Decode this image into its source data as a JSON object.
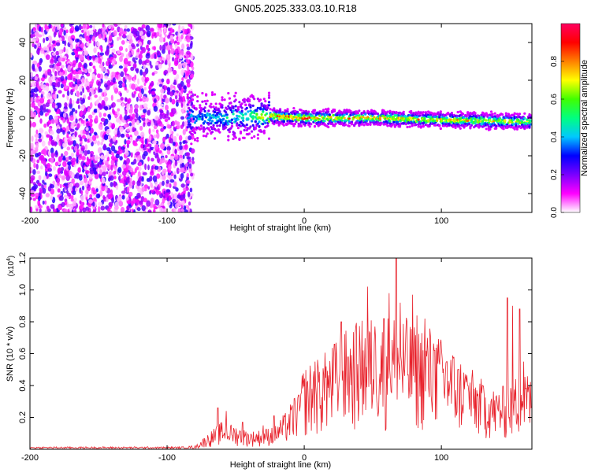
{
  "title": "GN05.2025.333.03.10.R18",
  "chart_data": [
    {
      "type": "heatmap",
      "xlabel": "Height of straight line (km)",
      "ylabel": "Frequency (Hz)",
      "xlim": [
        -200,
        166
      ],
      "ylim": [
        -50,
        50
      ],
      "x_ticks": [
        -200,
        -100,
        0,
        100
      ],
      "y_ticks": [
        -40,
        -20,
        0,
        20,
        40
      ],
      "colorbar": {
        "label": "Normalized spectral amplitude",
        "range": [
          0,
          1
        ],
        "ticks": [
          "0.0",
          "0.2",
          "0.4",
          "0.6",
          "0.8"
        ],
        "colors": [
          "#ffffff",
          "#ff00ff",
          "#7a00ff",
          "#0000ff",
          "#00c8ff",
          "#00ff80",
          "#40ff00",
          "#ffff00",
          "#ff8000",
          "#ff0000",
          "#ff0060"
        ]
      },
      "noise_region_x": [
        -200,
        -81
      ],
      "signal_ridge": {
        "x": [
          -85,
          -60,
          -40,
          -25,
          0,
          50,
          100,
          166
        ],
        "freq": [
          0,
          0,
          1,
          1,
          0,
          0,
          -1,
          -2
        ],
        "peak_amplitude": [
          0.45,
          0.5,
          0.55,
          0.95,
          0.95,
          0.9,
          0.85,
          0.8
        ]
      },
      "grid": false
    },
    {
      "type": "line",
      "xlabel": "Height of straight line (km)",
      "ylabel": "SNR (10 * v/v)",
      "y_multiplier": "(x10",
      "y_multiplier_exp": "4",
      "y_multiplier_close": ")",
      "xlim": [
        -200,
        166
      ],
      "ylim": [
        0,
        1.2
      ],
      "x_ticks": [
        -200,
        -100,
        0,
        100
      ],
      "y_ticks": [
        0.2,
        0.4,
        0.6,
        0.8,
        1.0,
        1.2
      ],
      "y_tick_labels": [
        "0.2",
        "0.4",
        "0.6",
        "0.8",
        "1.0",
        "1.2"
      ],
      "series": [
        {
          "color": "#e8202a",
          "x": [
            -200,
            -90,
            -80,
            -70,
            -60,
            -50,
            -40,
            -30,
            -20,
            -10,
            0,
            10,
            20,
            30,
            40,
            50,
            60,
            70,
            80,
            90,
            100,
            110,
            120,
            130,
            140,
            150,
            160,
            166
          ],
          "envelope": [
            0.01,
            0.01,
            0.015,
            0.08,
            0.14,
            0.12,
            0.09,
            0.1,
            0.13,
            0.22,
            0.42,
            0.46,
            0.52,
            0.6,
            0.65,
            0.67,
            0.68,
            0.7,
            0.62,
            0.64,
            0.56,
            0.5,
            0.42,
            0.35,
            0.3,
            0.34,
            0.42,
            0.35
          ],
          "peaks": [
            [
              -63,
              0.26
            ],
            [
              -57,
              0.24
            ],
            [
              -45,
              0.17
            ],
            [
              -30,
              0.15
            ],
            [
              -22,
              0.21
            ],
            [
              -10,
              0.28
            ],
            [
              -4,
              0.34
            ],
            [
              2,
              0.42
            ],
            [
              8,
              0.55
            ],
            [
              16,
              0.52
            ],
            [
              22,
              0.66
            ],
            [
              27,
              0.8
            ],
            [
              32,
              0.58
            ],
            [
              37,
              0.72
            ],
            [
              43,
              0.62
            ],
            [
              46,
              1.02
            ],
            [
              52,
              0.7
            ],
            [
              58,
              0.82
            ],
            [
              62,
              0.98
            ],
            [
              67,
              1.2
            ],
            [
              70,
              0.92
            ],
            [
              75,
              0.8
            ],
            [
              79,
              0.97
            ],
            [
              82,
              0.84
            ],
            [
              88,
              0.82
            ],
            [
              95,
              0.62
            ],
            [
              100,
              0.62
            ],
            [
              104,
              0.55
            ],
            [
              112,
              0.5
            ],
            [
              118,
              0.42
            ],
            [
              124,
              0.38
            ],
            [
              130,
              0.4
            ],
            [
              136,
              0.3
            ],
            [
              142,
              0.34
            ],
            [
              148,
              0.95
            ],
            [
              152,
              0.9
            ],
            [
              157,
              0.88
            ],
            [
              160,
              0.55
            ],
            [
              164,
              0.4
            ]
          ]
        }
      ],
      "grid": false
    }
  ]
}
